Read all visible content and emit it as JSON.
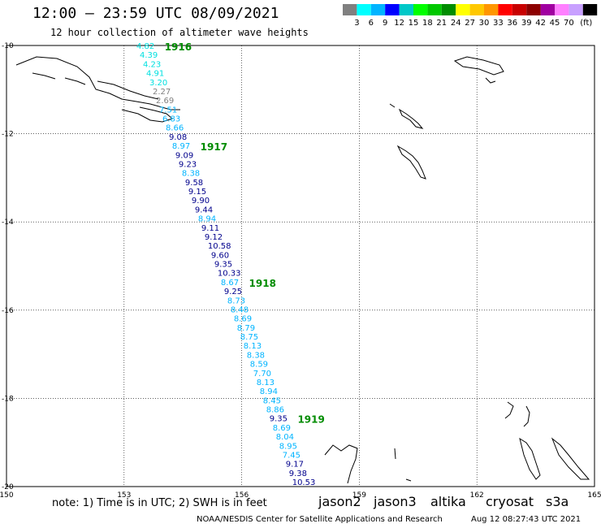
{
  "header": {
    "title": "12:00 – 23:59 UTC 08/09/2021",
    "subtitle": "12 hour collection of altimeter wave heights"
  },
  "legend": {
    "colors": [
      "#808080",
      "#00ffff",
      "#00b4ff",
      "#0000ff",
      "#00c8c8",
      "#00ff00",
      "#00c800",
      "#008c00",
      "#ffff00",
      "#ffc800",
      "#ff9600",
      "#ff0000",
      "#c80000",
      "#8c0000",
      "#a000a0",
      "#ff80ff",
      "#c8a0ff",
      "#000000"
    ],
    "labels": [
      "3",
      "6",
      "9",
      "12",
      "15",
      "18",
      "21",
      "24",
      "27",
      "30",
      "33",
      "36",
      "39",
      "42",
      "45",
      "70"
    ],
    "unit": "(ft)"
  },
  "map": {
    "lon_labels": [
      "150",
      "153",
      "156",
      "159",
      "162",
      "165"
    ],
    "lat_labels": [
      "-10",
      "-12",
      "-14",
      "-16",
      "-18",
      "-20"
    ],
    "times": [
      "1916",
      "1917",
      "1918",
      "1919"
    ],
    "swh": [
      {
        "v": "4.82",
        "c": "#00e0e0"
      },
      {
        "v": "4.39",
        "c": "#00e0e0"
      },
      {
        "v": "4.23",
        "c": "#00e0e0"
      },
      {
        "v": "4.91",
        "c": "#00e0e0"
      },
      {
        "v": "3.20",
        "c": "#00e0e0"
      },
      {
        "v": "2.27",
        "c": "#808080"
      },
      {
        "v": "2.69",
        "c": "#808080"
      },
      {
        "v": "7.51",
        "c": "#00b4ff"
      },
      {
        "v": "6.83",
        "c": "#00b4ff"
      },
      {
        "v": "8.66",
        "c": "#00b4ff"
      },
      {
        "v": "9.08",
        "c": "#00008c"
      },
      {
        "v": "8.97",
        "c": "#00b4ff"
      },
      {
        "v": "9.09",
        "c": "#00008c"
      },
      {
        "v": "9.23",
        "c": "#00008c"
      },
      {
        "v": "8.38",
        "c": "#00b4ff"
      },
      {
        "v": "9.58",
        "c": "#00008c"
      },
      {
        "v": "9.15",
        "c": "#00008c"
      },
      {
        "v": "9.90",
        "c": "#00008c"
      },
      {
        "v": "9.44",
        "c": "#00008c"
      },
      {
        "v": "8.94",
        "c": "#00b4ff"
      },
      {
        "v": "9.11",
        "c": "#00008c"
      },
      {
        "v": "9.12",
        "c": "#00008c"
      },
      {
        "v": "10.58",
        "c": "#00008c"
      },
      {
        "v": "9.60",
        "c": "#00008c"
      },
      {
        "v": "9.35",
        "c": "#00008c"
      },
      {
        "v": "10.33",
        "c": "#00008c"
      },
      {
        "v": "8.67",
        "c": "#00b4ff"
      },
      {
        "v": "9.25",
        "c": "#00008c"
      },
      {
        "v": "8.73",
        "c": "#00b4ff"
      },
      {
        "v": "8.48",
        "c": "#00b4ff"
      },
      {
        "v": "8.69",
        "c": "#00b4ff"
      },
      {
        "v": "8.79",
        "c": "#00b4ff"
      },
      {
        "v": "8.75",
        "c": "#00b4ff"
      },
      {
        "v": "8.13",
        "c": "#00b4ff"
      },
      {
        "v": "8.38",
        "c": "#00b4ff"
      },
      {
        "v": "8.59",
        "c": "#00b4ff"
      },
      {
        "v": "7.70",
        "c": "#00b4ff"
      },
      {
        "v": "8.13",
        "c": "#00b4ff"
      },
      {
        "v": "8.94",
        "c": "#00b4ff"
      },
      {
        "v": "8.45",
        "c": "#00b4ff"
      },
      {
        "v": "8.86",
        "c": "#00b4ff"
      },
      {
        "v": "9.35",
        "c": "#00008c"
      },
      {
        "v": "8.69",
        "c": "#00b4ff"
      },
      {
        "v": "8.04",
        "c": "#00b4ff"
      },
      {
        "v": "8.95",
        "c": "#00b4ff"
      },
      {
        "v": "7.45",
        "c": "#00b4ff"
      },
      {
        "v": "9.17",
        "c": "#00008c"
      },
      {
        "v": "9.38",
        "c": "#00008c"
      },
      {
        "v": "10.53",
        "c": "#00008c"
      }
    ]
  },
  "footer": {
    "note": "note: 1) Time is in UTC; 2) SWH is in feet",
    "satellites": [
      {
        "name": "jason2",
        "color": "#0000ff"
      },
      {
        "name": "jason3",
        "color": "#00a000"
      },
      {
        "name": "altika",
        "color": "#ff9600"
      },
      {
        "name": "cryosat",
        "color": "#ff0000"
      },
      {
        "name": "s3a",
        "color": "#a00000"
      }
    ],
    "credit": "NOAA/NESDIS Center for Satellite Applications and Research",
    "timestamp": "Aug 12 08:27:43 UTC 2021"
  }
}
